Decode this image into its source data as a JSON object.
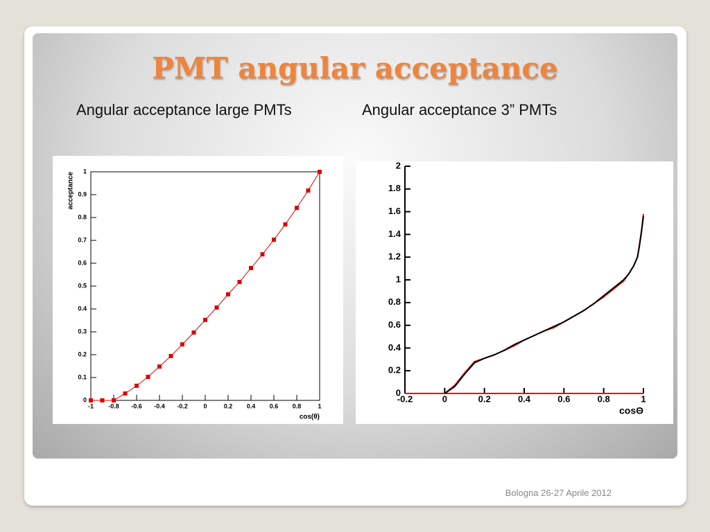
{
  "title": "PMT angular acceptance",
  "subtitles": [
    "Angular acceptance large PMTs",
    "Angular acceptance 3” PMTs"
  ],
  "footer": "Bologna 26-27 Aprile 2012",
  "chart_data": [
    {
      "type": "line",
      "markers": true,
      "x_label": "cos(θ)",
      "y_label": "acceptance",
      "x": [
        -1,
        -0.9,
        -0.8,
        -0.7,
        -0.6,
        -0.5,
        -0.4,
        -0.3,
        -0.2,
        -0.1,
        0,
        0.1,
        0.2,
        0.3,
        0.4,
        0.5,
        0.6,
        0.7,
        0.8,
        0.9,
        1
      ],
      "series": [
        {
          "color": "#dd0000",
          "values": [
            0,
            0,
            0,
            0.03,
            0.064,
            0.103,
            0.148,
            0.194,
            0.245,
            0.297,
            0.352,
            0.406,
            0.464,
            0.518,
            0.579,
            0.639,
            0.703,
            0.77,
            0.842,
            0.918,
            1
          ]
        }
      ],
      "xlim": [
        -1,
        1
      ],
      "ylim": [
        0,
        1
      ],
      "xticks": [
        -1,
        -0.8,
        -0.6,
        -0.4,
        -0.2,
        0,
        0.2,
        0.4,
        0.6,
        0.8,
        1
      ],
      "yticks": [
        0,
        0.1,
        0.2,
        0.3,
        0.4,
        0.5,
        0.6,
        0.7,
        0.8,
        0.9,
        1
      ]
    },
    {
      "type": "line",
      "markers": false,
      "x_label": "cosΘ",
      "series": [
        {
          "color": "#ee0000",
          "x": [
            -0.2,
            1
          ],
          "values": [
            0,
            0
          ]
        },
        {
          "color": "#ee0000",
          "x": [
            0,
            0.05,
            0.1,
            0.15,
            0.2,
            0.25,
            0.3,
            0.35,
            0.4,
            0.45,
            0.5,
            0.55,
            0.6,
            0.65,
            0.7,
            0.75,
            0.8,
            0.85,
            0.9,
            0.925,
            0.95,
            0.97,
            0.98,
            0.99,
            1
          ],
          "values": [
            0,
            0.07,
            0.18,
            0.28,
            0.31,
            0.34,
            0.38,
            0.42,
            0.47,
            0.51,
            0.55,
            0.58,
            0.63,
            0.68,
            0.73,
            0.79,
            0.85,
            0.92,
            0.99,
            1.05,
            1.12,
            1.2,
            1.31,
            1.43,
            1.58
          ]
        },
        {
          "color": "#000000",
          "x": [
            0,
            0.05,
            0.1,
            0.15,
            0.2,
            0.25,
            0.3,
            0.35,
            0.4,
            0.45,
            0.5,
            0.55,
            0.6,
            0.65,
            0.7,
            0.75,
            0.8,
            0.85,
            0.9,
            0.925,
            0.95,
            0.97,
            0.98,
            0.99,
            1
          ],
          "values": [
            0,
            0.06,
            0.17,
            0.27,
            0.31,
            0.34,
            0.38,
            0.43,
            0.47,
            0.51,
            0.55,
            0.59,
            0.63,
            0.68,
            0.73,
            0.79,
            0.86,
            0.93,
            1,
            1.05,
            1.12,
            1.2,
            1.3,
            1.42,
            1.56
          ]
        }
      ],
      "xlim": [
        -0.2,
        1
      ],
      "ylim": [
        0,
        2
      ],
      "xticks": [
        -0.2,
        0,
        0.2,
        0.4,
        0.6,
        0.8,
        1
      ],
      "yticks": [
        0,
        0.2,
        0.4,
        0.6,
        0.8,
        1,
        1.2,
        1.4,
        1.6,
        1.8,
        2
      ]
    }
  ]
}
